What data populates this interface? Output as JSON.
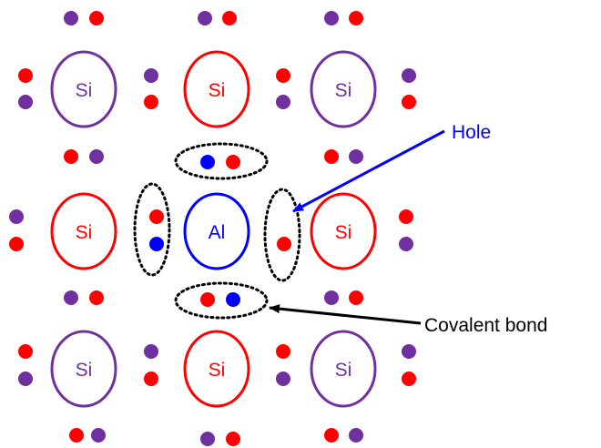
{
  "colors": {
    "purple": "#7030a0",
    "red": "#ff0000",
    "blue": "#0000ff",
    "black": "#000000",
    "background": "#ffffff"
  },
  "atoms": {
    "r1c1": "Si",
    "r1c2": "Si",
    "r1c3": "Si",
    "r2c1": "Si",
    "r2c2": "Al",
    "r2c3": "Si",
    "r3c1": "Si",
    "r3c2": "Si",
    "r3c3": "Si"
  },
  "annotations": {
    "hole": "Hole",
    "covalent_bond": "Covalent bond"
  }
}
